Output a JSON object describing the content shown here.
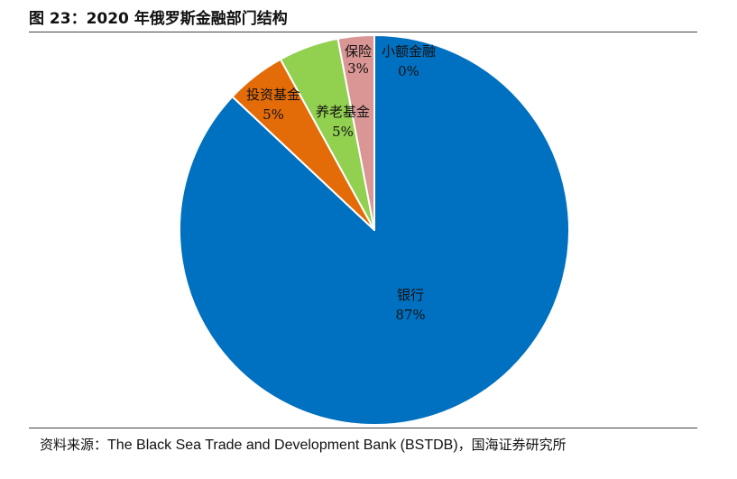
{
  "figure": {
    "title": "图 23：2020 年俄罗斯金融部门结构",
    "source_prefix": "资料来源：",
    "source_text": "The Black Sea Trade and Development Bank (BSTDB)",
    "source_suffix": "，国海证券研究所"
  },
  "chart_data": {
    "type": "pie",
    "title": "",
    "start": "12 o'clock",
    "direction": "clockwise",
    "legend": "none",
    "slices": [
      {
        "label": "银行",
        "percent_label": "87%",
        "value": 87,
        "color": "#0070C0"
      },
      {
        "label": "投资基金",
        "percent_label": "5%",
        "value": 5,
        "color": "#E36C09"
      },
      {
        "label": "养老基金",
        "percent_label": "5%",
        "value": 5,
        "color": "#92D050"
      },
      {
        "label": "保险",
        "percent_label": "3%",
        "value": 3,
        "color": "#D99694"
      },
      {
        "label": "小额金融",
        "percent_label": "0%",
        "value": 0,
        "color": "#8FB3D9"
      }
    ]
  }
}
